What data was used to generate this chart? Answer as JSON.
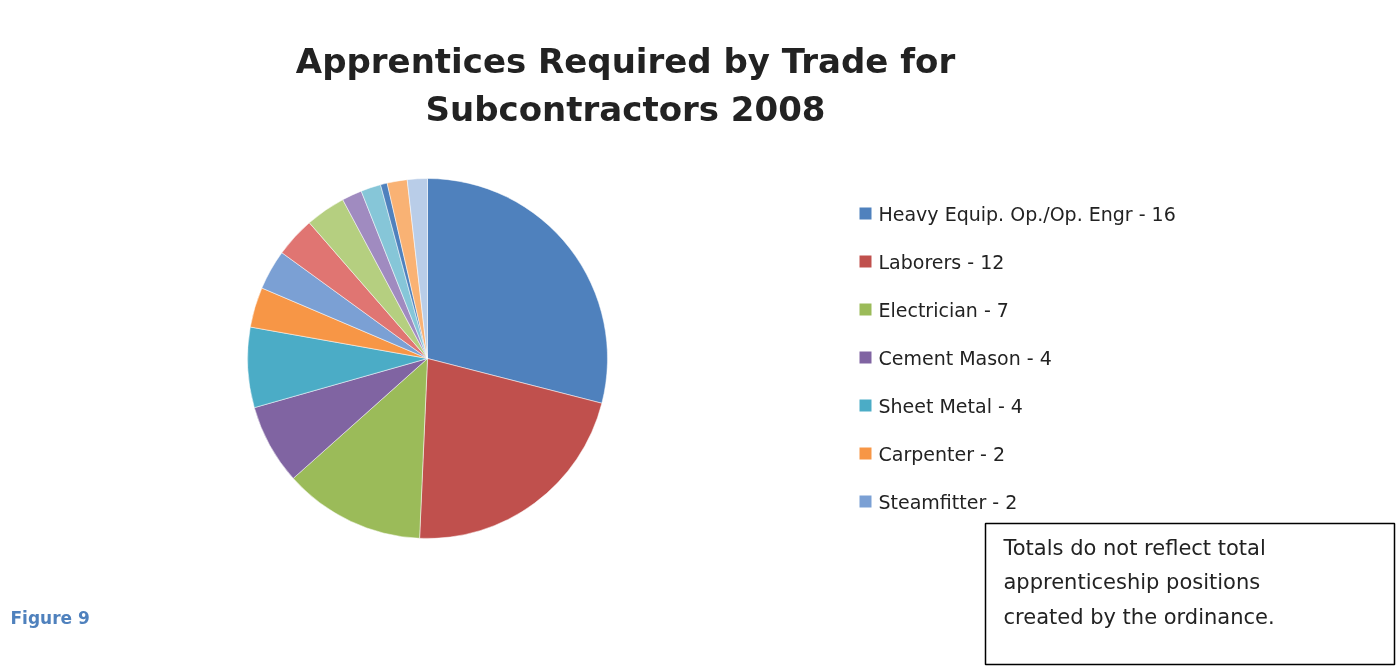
{
  "chart_data": {
    "type": "pie",
    "title": "Apprentices Required by Trade for Subcontractors 2008",
    "categories": [
      "Heavy Equip. Op./Op. Engr - 16",
      "Laborers - 12",
      "Electrician - 7",
      "Cement Mason - 4",
      "Sheet Metal - 4",
      "Carpenter - 2",
      "Steamfitter - 2",
      null,
      null,
      null,
      null,
      null,
      null,
      null
    ],
    "values": [
      29.0,
      21.7,
      12.7,
      7.2,
      7.2,
      3.6,
      3.6,
      3.6,
      3.6,
      1.8,
      1.8,
      0.6,
      1.8,
      1.8
    ],
    "colors": [
      "#4f81bd",
      "#c0504d",
      "#9bbb59",
      "#8064a2",
      "#4bacc6",
      "#f79646",
      "#7ba0d4",
      "#e07572",
      "#b5cf80",
      "#a08bc0",
      "#86c6d8",
      "#4f81bd",
      "#f9b274",
      "#b9cde8"
    ],
    "legend": "right",
    "annotations": [
      "Totals do not reflect total apprenticeship positions created by the ordinance.",
      "Figure 9"
    ]
  }
}
